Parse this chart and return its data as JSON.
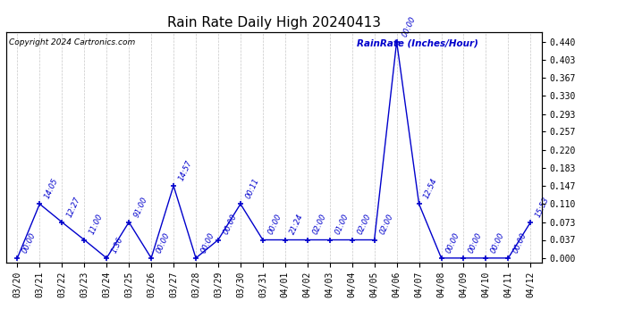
{
  "title": "Rain Rate Daily High 20240413",
  "copyright": "Copyright 2024 Cartronics.com",
  "legend_label": "RainRate (Inches/Hour)",
  "x_labels": [
    "03/20",
    "03/21",
    "03/22",
    "03/23",
    "03/24",
    "03/25",
    "03/26",
    "03/27",
    "03/28",
    "03/29",
    "03/30",
    "03/31",
    "04/01",
    "04/02",
    "04/03",
    "04/04",
    "04/05",
    "04/06",
    "04/07",
    "04/08",
    "04/09",
    "04/10",
    "04/11",
    "04/12"
  ],
  "values": [
    0.0,
    0.11,
    0.073,
    0.037,
    0.0,
    0.073,
    0.0,
    0.147,
    0.0,
    0.037,
    0.11,
    0.037,
    0.037,
    0.037,
    0.037,
    0.037,
    0.037,
    0.44,
    0.11,
    0.0,
    0.0,
    0.0,
    0.0,
    0.073
  ],
  "time_labels": [
    "00:00",
    "14:05",
    "12:27",
    "11:00",
    "1:36",
    "91:00",
    "00:00",
    "14:57",
    "00:00",
    "00:00",
    "00:11",
    "00:00",
    "21:24",
    "02:00",
    "01:00",
    "02:00",
    "02:00",
    "00:00",
    "12:54",
    "00:00",
    "00:00",
    "00:00",
    "00:00",
    "15:53"
  ],
  "line_color": "#0000cc",
  "background_color": "#ffffff",
  "grid_color": "#c8c8c8",
  "yticks": [
    0.0,
    0.037,
    0.073,
    0.11,
    0.147,
    0.183,
    0.22,
    0.257,
    0.293,
    0.33,
    0.367,
    0.403,
    0.44
  ],
  "ylim": [
    -0.01,
    0.46
  ],
  "title_fontsize": 11,
  "axis_fontsize": 7,
  "time_label_fontsize": 6,
  "copyright_fontsize": 6.5,
  "legend_fontsize": 7.5
}
